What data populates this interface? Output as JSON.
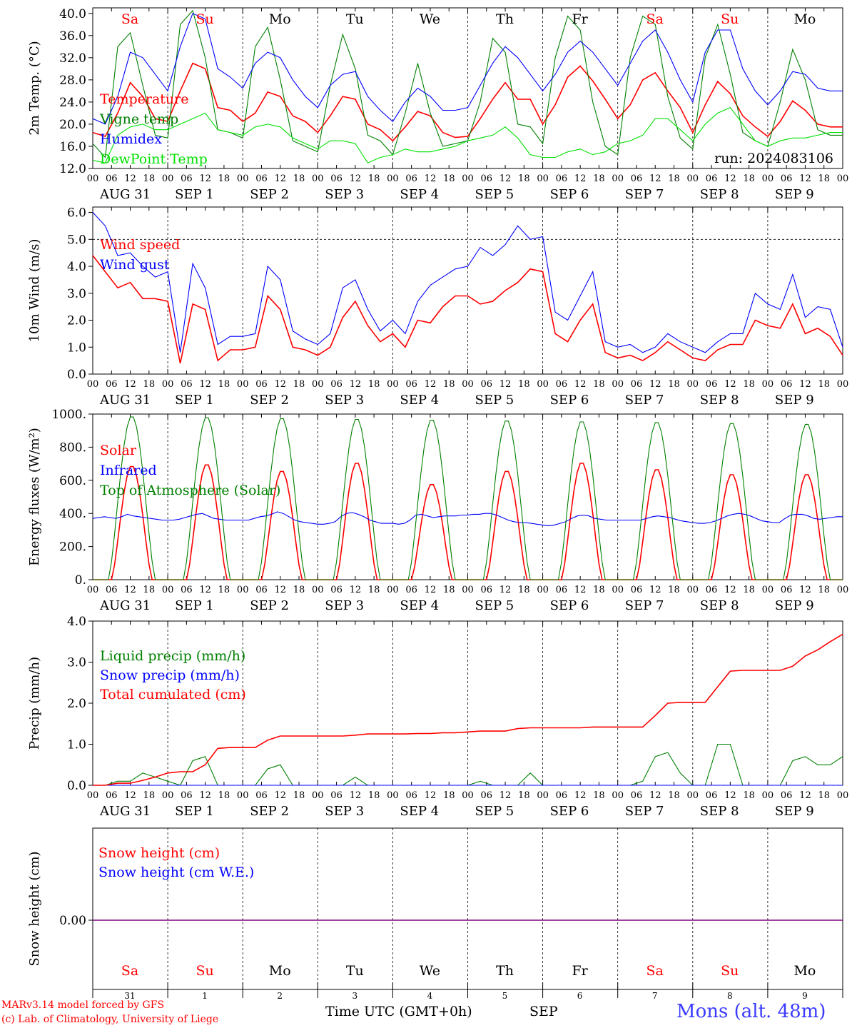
{
  "colors": {
    "red": "#ff0000",
    "blue": "#0000ff",
    "green": "#008000",
    "lightgreen": "#00e000",
    "purple": "#800080",
    "station": "#3b3bff"
  },
  "day_names": [
    "Sa",
    "Su",
    "Mo",
    "Tu",
    "We",
    "Th",
    "Fr",
    "Sa",
    "Su",
    "Mo"
  ],
  "day_name_colors": [
    "red",
    "red",
    "black",
    "black",
    "black",
    "black",
    "black",
    "red",
    "red",
    "black"
  ],
  "date_labels": [
    "AUG 31",
    "SEP  1",
    "SEP  2",
    "SEP  3",
    "SEP  4",
    "SEP  5",
    "SEP  6",
    "SEP  7",
    "SEP  8",
    "SEP  9"
  ],
  "hour_ticks": [
    "00",
    "06",
    "12",
    "18"
  ],
  "hour_end_label": "00",
  "bottom_day_numbers": [
    "31",
    "1",
    "2",
    "3",
    "4",
    "5",
    "6",
    "7",
    "8",
    "9"
  ],
  "month_label": "SEP",
  "time_axis_label": "Time UTC (GMT+0h)",
  "credit_line1": "MARv3.14 model forced by GFS",
  "credit_line2": "(c) Lab. of Climatology, University of Liege",
  "station_label": "Mons (alt. 48m)",
  "chart_data": [
    {
      "type": "line",
      "ylabel": "2m Temp. (°C)",
      "ylim": [
        12,
        41
      ],
      "yticks": [
        "12.0",
        "16.0",
        "20.0",
        "24.0",
        "28.0",
        "32.0",
        "36.0",
        "40.0"
      ],
      "run_label": "run: 2024083106",
      "x_hours_start": 0,
      "x_hours_end": 240,
      "step_hours": 6,
      "series": [
        {
          "name": "Temperature",
          "color": "red",
          "values": [
            18.5,
            17.8,
            22,
            27.5,
            25,
            21,
            20.5,
            26,
            31,
            30,
            23,
            22.5,
            20.5,
            22,
            25.8,
            25,
            21.5,
            20.5,
            18.5,
            21.5,
            25,
            24.5,
            20,
            19,
            17,
            19.5,
            22.3,
            21.5,
            18.5,
            17.6,
            17.8,
            21,
            24.5,
            27.5,
            24.5,
            24.5,
            20,
            23.5,
            28.5,
            30.5,
            27.8,
            24.5,
            21,
            23.5,
            28,
            29.3,
            26,
            23,
            18.5,
            23.5,
            27.7,
            25.5,
            21.5,
            19.5,
            17.8,
            20.5,
            24.2,
            22.5,
            20,
            19.5,
            19.5
          ]
        },
        {
          "name": "Vigne temp",
          "color": "green",
          "values": [
            16.5,
            14,
            34,
            36.5,
            27,
            18,
            17.5,
            38,
            40.5,
            32,
            19,
            18.5,
            17.5,
            34,
            37.5,
            28,
            17,
            16,
            15,
            27,
            36.2,
            30,
            18,
            17,
            14.5,
            22,
            31,
            22,
            16,
            16.5,
            17,
            24,
            35.5,
            33,
            20,
            19.5,
            16.5,
            32,
            39.5,
            37,
            24,
            16,
            14.5,
            32,
            39.5,
            38,
            25,
            17.5,
            15.5,
            32,
            38,
            29,
            18.5,
            17,
            16,
            24,
            33.5,
            28,
            19,
            18,
            18
          ]
        },
        {
          "name": "Humidex",
          "color": "blue",
          "values": [
            21,
            20,
            25,
            33,
            32,
            29,
            26,
            34,
            40,
            39,
            30,
            28.5,
            26.5,
            31,
            33,
            32,
            28,
            25,
            23,
            27,
            29,
            29.5,
            25,
            22.5,
            20.5,
            24,
            26.5,
            25,
            22.5,
            22.5,
            23,
            27,
            31,
            34,
            32,
            29,
            26,
            29,
            33,
            35,
            33,
            30,
            27,
            31,
            35,
            37,
            33,
            28,
            24,
            33,
            37,
            37,
            30,
            26,
            23.5,
            26,
            29.5,
            29,
            26.5,
            26,
            26
          ]
        },
        {
          "name": "DewPoint Temp",
          "color": "lightgreen",
          "values": [
            13.5,
            13,
            18,
            19.5,
            20,
            19,
            19,
            20,
            21,
            22,
            19,
            18.5,
            18,
            19.5,
            20,
            19.5,
            17.5,
            16.5,
            15.5,
            17,
            17,
            16.5,
            13,
            14,
            14.5,
            15.5,
            15,
            15,
            15.5,
            16,
            17,
            17.5,
            18,
            19.5,
            17.5,
            14.5,
            14,
            14,
            15,
            15.5,
            14.5,
            15,
            16.5,
            17,
            18,
            21,
            21,
            19,
            17,
            20,
            22,
            23,
            20,
            17,
            16,
            17,
            17.5,
            17.5,
            18,
            18.5,
            18.5
          ]
        }
      ]
    },
    {
      "type": "line",
      "ylabel": "10m Wind (m/s)",
      "ylim": [
        0,
        6.2
      ],
      "yticks": [
        "0.0",
        "1.0",
        "2.0",
        "3.0",
        "4.0",
        "5.0",
        "6.0"
      ],
      "reference_line": 5.0,
      "x_hours_start": 0,
      "x_hours_end": 240,
      "step_hours": 6,
      "series": [
        {
          "name": "Wind speed",
          "color": "red",
          "values": [
            4.4,
            3.8,
            3.2,
            3.4,
            2.8,
            2.8,
            2.7,
            0.4,
            2.6,
            2.4,
            0.5,
            0.9,
            0.9,
            1.0,
            2.9,
            2.4,
            1.0,
            0.9,
            0.7,
            1.0,
            2.1,
            2.7,
            1.8,
            1.2,
            1.5,
            1.0,
            2.0,
            1.9,
            2.5,
            2.9,
            2.9,
            2.6,
            2.7,
            3.1,
            3.4,
            3.9,
            3.8,
            1.5,
            1.2,
            2.0,
            2.6,
            0.8,
            0.6,
            0.7,
            0.5,
            0.8,
            1.2,
            0.9,
            0.6,
            0.5,
            0.9,
            1.1,
            1.1,
            2.0,
            1.8,
            1.7,
            2.6,
            1.5,
            1.7,
            1.4,
            0.7
          ]
        },
        {
          "name": "Wind gust",
          "color": "blue",
          "values": [
            6.0,
            5.5,
            4.4,
            4.5,
            4.0,
            3.6,
            3.8,
            0.8,
            4.1,
            3.2,
            1.1,
            1.4,
            1.4,
            1.5,
            4.0,
            3.5,
            1.6,
            1.3,
            1.1,
            1.5,
            3.2,
            3.5,
            2.4,
            1.6,
            2.0,
            1.5,
            2.7,
            3.3,
            3.6,
            3.9,
            4.0,
            4.7,
            4.4,
            4.8,
            5.5,
            5.0,
            5.1,
            2.3,
            2.0,
            2.9,
            3.8,
            1.2,
            1.0,
            1.1,
            0.8,
            1.0,
            1.5,
            1.2,
            1.0,
            0.8,
            1.2,
            1.5,
            1.5,
            3.0,
            2.6,
            2.4,
            3.7,
            2.1,
            2.5,
            2.4,
            1.0
          ]
        }
      ]
    },
    {
      "type": "line",
      "ylabel": "Energy fluxes (W/m²)",
      "ylim": [
        0,
        1000
      ],
      "yticks": [
        "0.",
        "200.",
        "400.",
        "600.",
        "800.",
        "1000."
      ],
      "x_hours_start": 0,
      "x_hours_end": 240,
      "step_hours": 2,
      "series": [
        {
          "name": "Solar",
          "color": "red",
          "daily_peaks": [
            690,
            700,
            660,
            710,
            580,
            660,
            710,
            670,
            640,
            640
          ],
          "day_hours": [
            6,
            19
          ]
        },
        {
          "name": "Infrared",
          "color": "blue",
          "values": [
            370,
            375,
            380,
            375,
            370,
            380,
            395,
            385,
            380,
            375,
            370,
            365,
            360,
            360,
            360,
            365,
            375,
            385,
            395,
            400,
            385,
            370,
            365,
            360,
            360,
            360,
            360,
            360,
            370,
            380,
            385,
            395,
            410,
            400,
            380,
            360,
            350,
            345,
            340,
            335,
            335,
            340,
            350,
            380,
            400,
            405,
            395,
            380,
            360,
            350,
            340,
            340,
            340,
            335,
            340,
            360,
            390,
            395,
            385,
            375,
            380,
            385,
            385,
            385,
            390,
            390,
            395,
            395,
            400,
            400,
            390,
            375,
            360,
            350,
            345,
            345,
            340,
            335,
            330,
            325,
            330,
            340,
            350,
            370,
            385,
            390,
            385,
            370,
            365,
            360,
            360,
            360,
            360,
            360,
            360,
            360,
            370,
            380,
            385,
            380,
            375,
            365,
            355,
            350,
            345,
            340,
            340,
            345,
            355,
            370,
            385,
            395,
            400,
            395,
            385,
            370,
            355,
            350,
            345,
            345,
            370,
            390,
            395,
            395,
            385,
            370,
            365,
            370,
            375,
            380,
            380
          ]
        },
        {
          "name": "Top of Atmosphere (Solar)",
          "color": "green",
          "daily_peaks": [
            990,
            985,
            980,
            975,
            970,
            965,
            960,
            955,
            950,
            945
          ],
          "day_hours": [
            5,
            20
          ]
        }
      ]
    },
    {
      "type": "line",
      "ylabel": "Precip (mm/h)",
      "ylim": [
        0,
        4
      ],
      "yticks": [
        "0.0",
        "1.0",
        "2.0",
        "3.0",
        "4.0"
      ],
      "x_hours_start": 0,
      "x_hours_end": 240,
      "step_hours": 6,
      "series": [
        {
          "name": "Liquid precip (mm/h)",
          "color": "green",
          "values": [
            0,
            0,
            0.1,
            0.1,
            0.3,
            0.2,
            0.1,
            0,
            0.6,
            0.7,
            0,
            0,
            0,
            0,
            0.4,
            0.5,
            0,
            0,
            0,
            0,
            0,
            0.2,
            0,
            0,
            0,
            0,
            0,
            0,
            0,
            0,
            0,
            0.1,
            0,
            0,
            0,
            0.3,
            0,
            0,
            0,
            0,
            0,
            0,
            0,
            0,
            0.1,
            0.7,
            0.8,
            0.3,
            0,
            0,
            1.0,
            1.0,
            0,
            0,
            0,
            0,
            0.6,
            0.7,
            0.5,
            0.5,
            0.7
          ]
        },
        {
          "name": "Snow precip (mm/h)",
          "color": "blue",
          "values": [
            0,
            0,
            0,
            0,
            0,
            0,
            0,
            0,
            0,
            0,
            0,
            0,
            0,
            0,
            0,
            0,
            0,
            0,
            0,
            0,
            0,
            0,
            0,
            0,
            0,
            0,
            0,
            0,
            0,
            0,
            0,
            0,
            0,
            0,
            0,
            0,
            0,
            0,
            0,
            0,
            0,
            0,
            0,
            0,
            0,
            0,
            0,
            0,
            0,
            0,
            0,
            0,
            0,
            0,
            0,
            0,
            0,
            0,
            0,
            0,
            0
          ]
        },
        {
          "name": "Total cumulated (cm)",
          "color": "red",
          "values": [
            0,
            0,
            0.05,
            0.05,
            0.12,
            0.2,
            0.3,
            0.33,
            0.33,
            0.5,
            0.9,
            0.92,
            0.92,
            0.92,
            1.1,
            1.2,
            1.2,
            1.2,
            1.2,
            1.2,
            1.2,
            1.22,
            1.25,
            1.25,
            1.25,
            1.25,
            1.26,
            1.26,
            1.28,
            1.28,
            1.3,
            1.32,
            1.32,
            1.32,
            1.38,
            1.4,
            1.4,
            1.4,
            1.4,
            1.4,
            1.42,
            1.42,
            1.42,
            1.42,
            1.42,
            1.7,
            2.0,
            2.02,
            2.02,
            2.02,
            2.4,
            2.78,
            2.8,
            2.8,
            2.8,
            2.8,
            2.9,
            3.15,
            3.3,
            3.5,
            3.68
          ]
        }
      ]
    },
    {
      "type": "line",
      "ylabel": "Snow height (cm)",
      "yticks": [
        "0.00"
      ],
      "x_hours_start": 0,
      "x_hours_end": 240,
      "series": [
        {
          "name": "Snow height (cm)",
          "color": "red",
          "values": [
            0,
            0
          ]
        },
        {
          "name": "Snow height (cm W.E.)",
          "color": "blue",
          "values": [
            0,
            0
          ]
        }
      ]
    }
  ]
}
